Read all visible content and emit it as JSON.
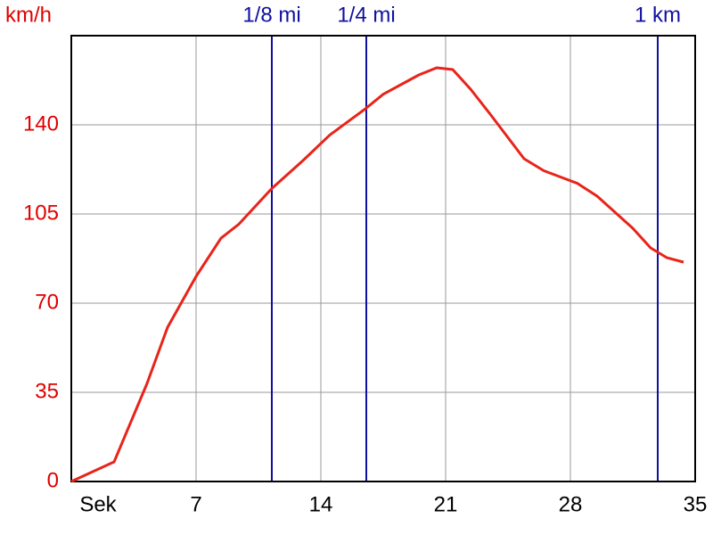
{
  "chart_data": {
    "type": "line",
    "y_label": "km/h",
    "x": [
      0,
      2.4,
      4.25,
      5.4,
      7,
      8.4,
      9.4,
      11.25,
      13,
      14.5,
      16.5,
      17.5,
      19.5,
      20.5,
      21.4,
      22.4,
      23.5,
      25.4,
      26.5,
      28.4,
      29.5,
      31.5,
      32.5,
      33.4,
      34.35
    ],
    "values": [
      0,
      7.7,
      38.5,
      60.5,
      80.5,
      95.5,
      101,
      115,
      126,
      136,
      146.3,
      152,
      159.6,
      162.4,
      161.7,
      154,
      144.2,
      126.7,
      122,
      117,
      112,
      99.4,
      91.7,
      87.9,
      86.1
    ],
    "color": "#e8241a",
    "xlim": [
      0,
      35
    ],
    "xticks": [
      {
        "value": 0,
        "label": "Sek"
      },
      7,
      14,
      21,
      28,
      35
    ],
    "ylim": [
      0,
      175
    ],
    "yticks": [
      0,
      35,
      70,
      105,
      140
    ],
    "grid": true,
    "markers": [
      {
        "label": "1/8 mi",
        "value": 11.25
      },
      {
        "label": "1/4 mi",
        "value": 16.55
      },
      {
        "label": "1 km",
        "value": 32.9
      }
    ],
    "marker_color": "#1010a0"
  }
}
